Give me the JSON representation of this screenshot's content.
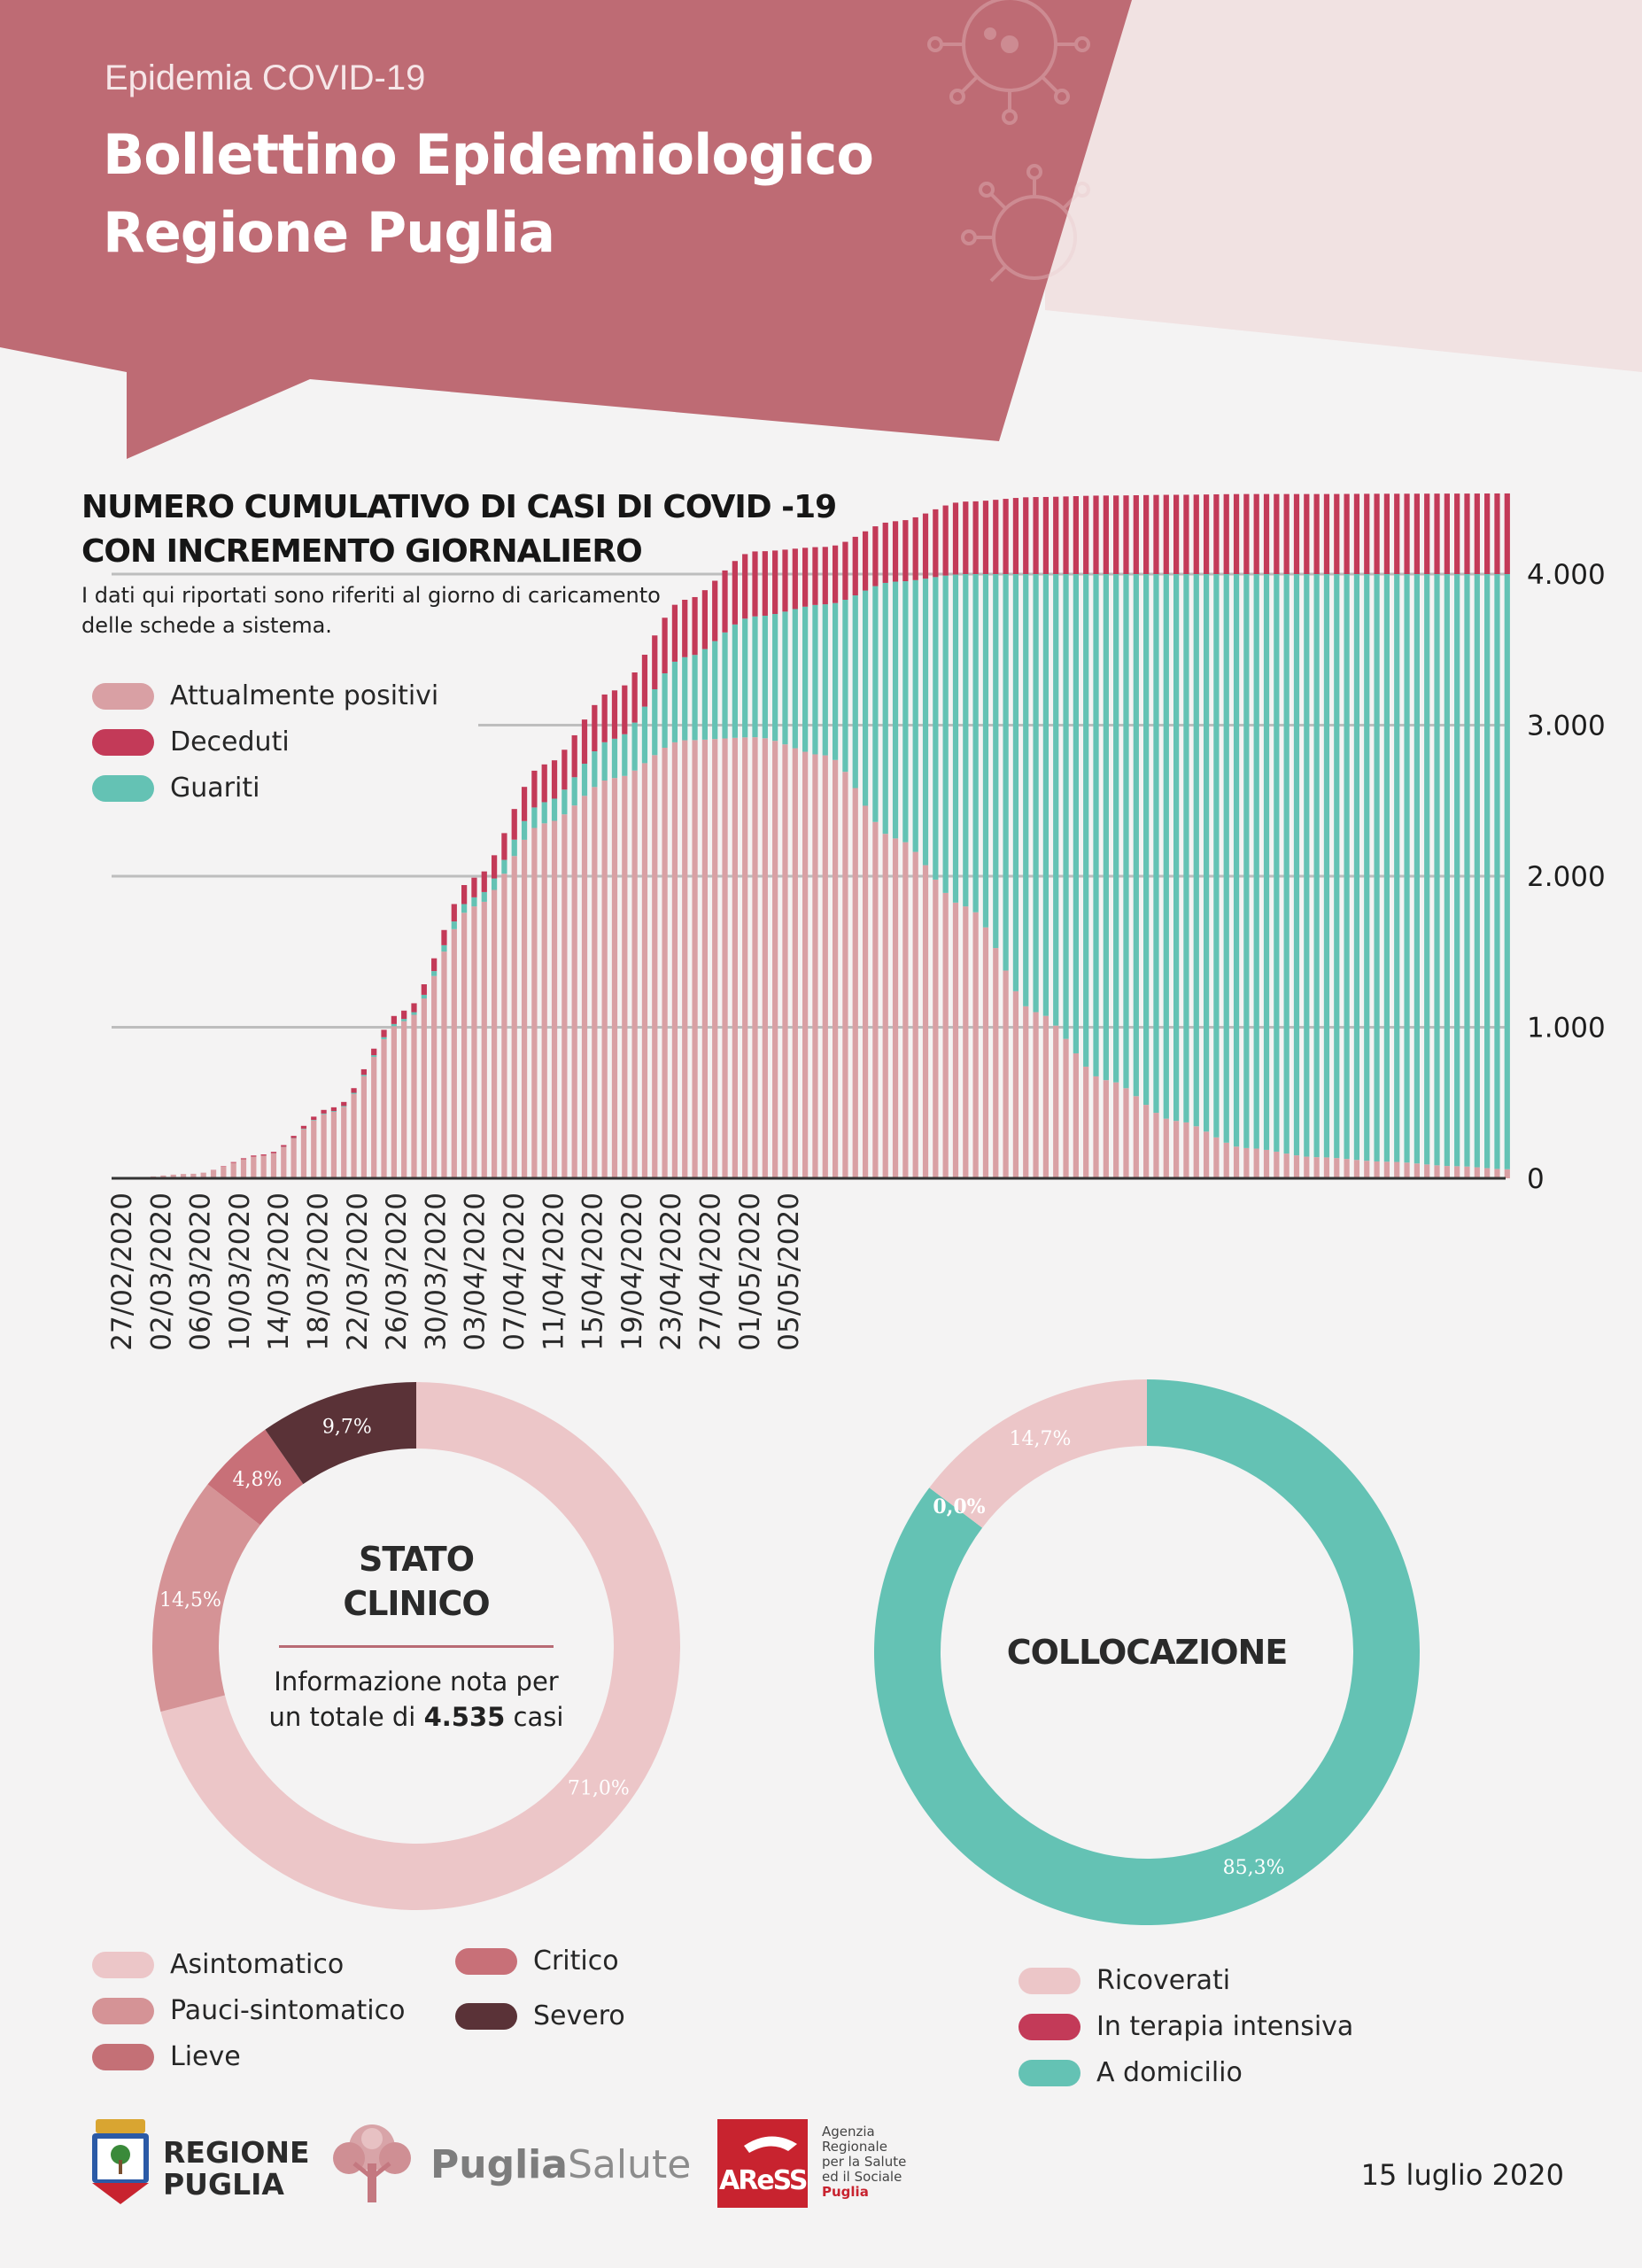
{
  "header": {
    "subtitle": "Epidemia COVID-19",
    "title_line1": "Bollettino Epidemiologico",
    "title_line2": "Regione Puglia"
  },
  "colors": {
    "header_red": "#be6b74",
    "header_pink": "#f1e2e2",
    "positivi": "#d9a0a4",
    "deceduti": "#c33a58",
    "guariti": "#64c2b4",
    "asintomatico": "#ecc6c8",
    "pauci": "#d59396",
    "lieve": "#c47076",
    "critico": "#c87078",
    "severo": "#5a3237",
    "ricoverati": "#ecc6c8",
    "terapia": "#c33a58",
    "domicilio": "#64c2b4"
  },
  "chart_data": [
    {
      "type": "bar",
      "title": "NUMERO CUMULATIVO DI CASI DI COVID -19\nCON INCREMENTO GIORNALIERO",
      "note": "I dati qui riportati sono riferiti al giorno di caricamento delle schede a sistema.",
      "stacked": true,
      "x_tick_labels": [
        "27/02/2020",
        "02/03/2020",
        "06/03/2020",
        "10/03/2020",
        "14/03/2020",
        "18/03/2020",
        "22/03/2020",
        "26/03/2020",
        "30/03/2020",
        "03/04/2020",
        "07/04/2020",
        "11/04/2020",
        "15/04/2020",
        "19/04/2020",
        "23/04/2020",
        "27/04/2020",
        "01/05/2020",
        "05/05/2020"
      ],
      "y_tick_labels": [
        "0",
        "1.000",
        "2.000",
        "3.000",
        "4.000"
      ],
      "ylim": [
        0,
        4500
      ],
      "series_names": [
        "Attualmente positivi",
        "Deceduti",
        "Guariti"
      ],
      "weekly_values": [
        {
          "x": "27/02/2020",
          "positivi": 1,
          "guariti": 0,
          "deceduti": 0
        },
        {
          "x": "05/03/2020",
          "positivi": 30,
          "guariti": 0,
          "deceduti": 0
        },
        {
          "x": "12/03/2020",
          "positivi": 150,
          "guariti": 0,
          "deceduti": 8
        },
        {
          "x": "19/03/2020",
          "positivi": 440,
          "guariti": 5,
          "deceduti": 25
        },
        {
          "x": "26/03/2020",
          "positivi": 1040,
          "guariti": 15,
          "deceduti": 55
        },
        {
          "x": "02/04/2020",
          "positivi": 1800,
          "guariti": 60,
          "deceduti": 130
        },
        {
          "x": "09/04/2020",
          "positivi": 2350,
          "guariti": 140,
          "deceduti": 250
        },
        {
          "x": "16/04/2020",
          "positivi": 2650,
          "guariti": 260,
          "deceduti": 320
        },
        {
          "x": "23/04/2020",
          "positivi": 2900,
          "guariti": 550,
          "deceduti": 380
        },
        {
          "x": "30/04/2020",
          "positivi": 2920,
          "guariti": 800,
          "deceduti": 430
        },
        {
          "x": "07/05/2020",
          "positivi": 2800,
          "guariti": 1000,
          "deceduti": 380
        },
        {
          "x": "14/05/2020",
          "positivi": 2250,
          "guariti": 1700,
          "deceduti": 400
        },
        {
          "x": "21/05/2020",
          "positivi": 1800,
          "guariti": 2200,
          "deceduti": 480
        },
        {
          "x": "28/05/2020",
          "positivi": 1100,
          "guariti": 2900,
          "deceduti": 510
        },
        {
          "x": "04/06/2020",
          "positivi": 650,
          "guariti": 3350,
          "deceduti": 520
        },
        {
          "x": "11/06/2020",
          "positivi": 380,
          "guariti": 3620,
          "deceduti": 525
        },
        {
          "x": "18/06/2020",
          "positivi": 200,
          "guariti": 3800,
          "deceduti": 530
        },
        {
          "x": "25/06/2020",
          "positivi": 140,
          "guariti": 3860,
          "deceduti": 530
        },
        {
          "x": "02/07/2020",
          "positivi": 110,
          "guariti": 3890,
          "deceduti": 532
        },
        {
          "x": "09/07/2020",
          "positivi": 80,
          "guariti": 3920,
          "deceduti": 533
        },
        {
          "x": "15/07/2020",
          "positivi": 60,
          "guariti": 3940,
          "deceduti": 534
        }
      ]
    },
    {
      "type": "pie",
      "donut": true,
      "center_title_line1": "STATO",
      "center_title_line2": "CLINICO",
      "categories": [
        "Asintomatico",
        "Pauci-sintomatico",
        "Lieve",
        "Critico",
        "Severo"
      ],
      "values": [
        71.0,
        14.5,
        0,
        4.8,
        9.7
      ],
      "labels": [
        "71,0%",
        "14,5%",
        "",
        "4,8%",
        "9,7%"
      ]
    },
    {
      "type": "pie",
      "donut": true,
      "center_title": "COLLOCAZIONE",
      "categories": [
        "Ricoverati",
        "In terapia intensiva",
        "A domicilio"
      ],
      "values": [
        14.7,
        0.0,
        85.3
      ],
      "labels": [
        "14,7%",
        "0,0%",
        "85,3%"
      ]
    }
  ],
  "donut_note": {
    "line1": "Informazione nota per",
    "line2_prefix": "un totale di",
    "total": "4.535",
    "line2_suffix": "casi"
  },
  "footer": {
    "regione_line1": "REGIONE",
    "regione_line2": "PUGLIA",
    "puglia_bold": "Puglia",
    "puglia_light": "Salute",
    "aress_mark": "AReSS",
    "aress_line1": "Agenzia",
    "aress_line2": "Regionale",
    "aress_line3": "per la Salute",
    "aress_line4": "ed il Sociale",
    "aress_line5": "Puglia",
    "date": "15 luglio 2020"
  }
}
